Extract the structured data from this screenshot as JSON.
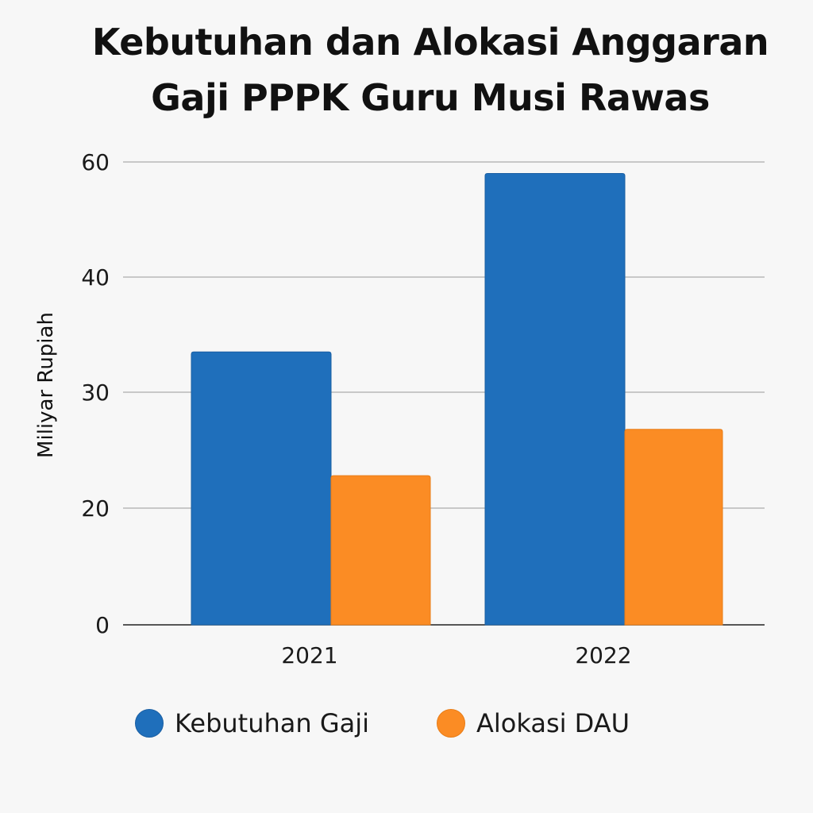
{
  "chart_data": {
    "type": "bar",
    "title": "Kebutuhan dan Alokasi Anggaran Gaji PPPK Guru Musi Rawas",
    "title_lines": [
      "Kebutuhan dan Alokasi Anggaran",
      "Gaji PPPK Guru Musi Rawas"
    ],
    "xlabel": "",
    "ylabel": "Miliyar Rupiah",
    "categories": [
      "2021",
      "2022"
    ],
    "y_ticks": [
      {
        "value": 0,
        "label": "0"
      },
      {
        "value": 20,
        "label": "20"
      },
      {
        "value": 30,
        "label": "30"
      },
      {
        "value": 40,
        "label": "40"
      },
      {
        "value": 60,
        "label": "60"
      }
    ],
    "series": [
      {
        "name": "Kebutuhan Gaji",
        "color": "#1f6fbb",
        "values": [
          33.5,
          58
        ]
      },
      {
        "name": "Alokasi DAU",
        "color": "#fb8c24",
        "values": [
          22.8,
          26.8
        ]
      }
    ],
    "grid": true,
    "legend_position": "bottom"
  }
}
